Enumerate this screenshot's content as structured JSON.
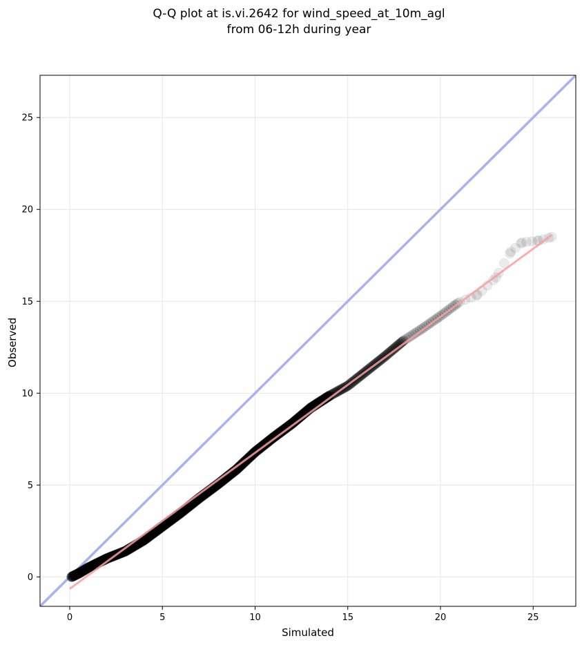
{
  "chart_data": {
    "type": "scatter",
    "title": "Q-Q plot at is.vi.2642 for wind_speed_at_10m_agl",
    "subtitle": "from 06-12h during year",
    "xlabel": "Simulated",
    "ylabel": "Observed",
    "xlim": [
      -1.6,
      27.3
    ],
    "ylim": [
      -1.6,
      27.3
    ],
    "x_ticks": [
      0,
      5,
      10,
      15,
      20,
      25
    ],
    "y_ticks": [
      0,
      5,
      10,
      15,
      20,
      25
    ],
    "x_tick_labels": [
      "0",
      "5",
      "10",
      "15",
      "20",
      "25"
    ],
    "y_tick_labels": [
      "0",
      "5",
      "10",
      "15",
      "20",
      "25"
    ],
    "grid": true,
    "colors": {
      "points": "#000000",
      "identity_line": "#aab0f0",
      "fit_line": "#f4a0a0"
    },
    "identity_line": {
      "x": [
        -1.6,
        27.3
      ],
      "y": [
        -1.6,
        27.3
      ]
    },
    "fit_line": {
      "x": [
        0.0,
        26.0
      ],
      "y": [
        -0.65,
        18.6
      ]
    },
    "qq_curve": {
      "x": [
        0.1,
        0.5,
        1.0,
        2.0,
        3.0,
        4.0,
        5.0,
        6.0,
        7.0,
        8.0,
        9.0,
        10.0,
        11.0,
        12.0,
        13.0,
        14.0,
        15.0,
        16.0,
        17.0,
        18.0,
        19.0,
        20.0,
        21.0,
        22.0,
        23.0,
        23.8,
        24.4,
        25.3,
        26.0
      ],
      "y": [
        0.0,
        0.2,
        0.5,
        1.0,
        1.4,
        2.0,
        2.75,
        3.5,
        4.3,
        5.05,
        5.85,
        6.8,
        7.6,
        8.35,
        9.2,
        9.85,
        10.4,
        11.2,
        12.0,
        12.85,
        13.5,
        14.2,
        14.95,
        15.35,
        16.3,
        17.7,
        18.2,
        18.3,
        18.5
      ]
    }
  }
}
